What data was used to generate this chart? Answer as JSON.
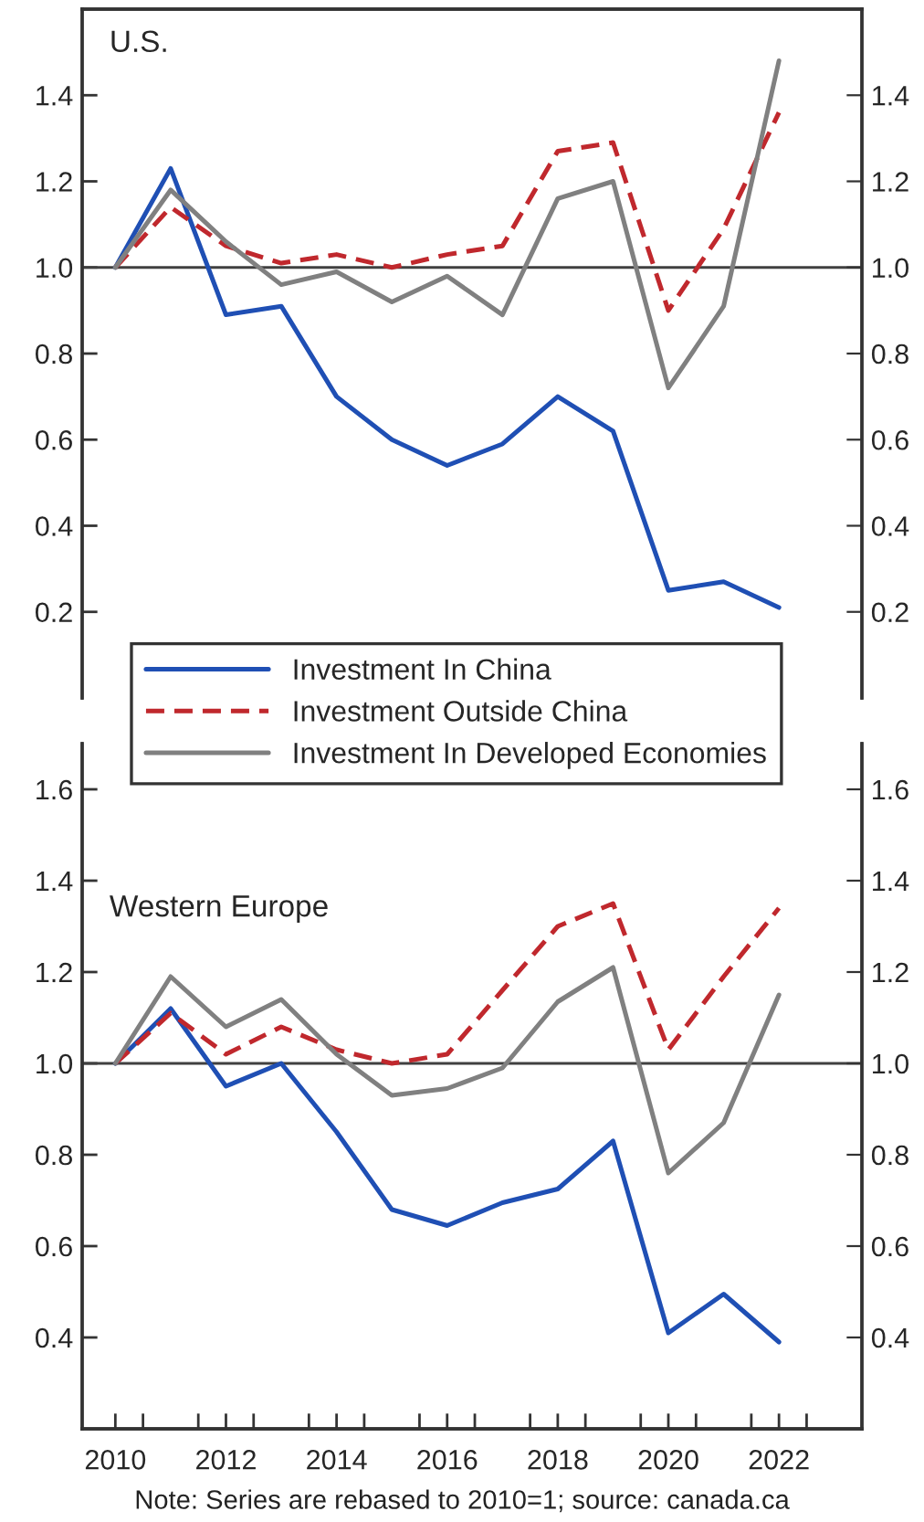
{
  "chart_data": [
    {
      "type": "line",
      "title": "U.S.",
      "x": [
        2010,
        2011,
        2012,
        2013,
        2014,
        2015,
        2016,
        2017,
        2018,
        2019,
        2020,
        2021,
        2022
      ],
      "series": [
        {
          "name": "Investment In China",
          "color": "#1f4fb4",
          "line_style": "solid",
          "values": [
            1.0,
            1.23,
            0.89,
            0.91,
            0.7,
            0.6,
            0.54,
            0.59,
            0.7,
            0.62,
            0.25,
            0.27,
            0.21
          ]
        },
        {
          "name": "Investment Outside China",
          "color": "#c0282d",
          "line_style": "dashed",
          "values": [
            1.0,
            1.14,
            1.05,
            1.01,
            1.03,
            1.0,
            1.03,
            1.05,
            1.27,
            1.29,
            0.9,
            1.09,
            1.36
          ]
        },
        {
          "name": "Investment In Developed Economies",
          "color": "#808080",
          "line_style": "solid",
          "values": [
            1.0,
            1.18,
            1.06,
            0.96,
            0.99,
            0.92,
            0.98,
            0.89,
            1.16,
            1.2,
            0.72,
            0.91,
            1.48
          ]
        }
      ],
      "xlim": [
        2009.4,
        2023.5
      ],
      "ylim": [
        0.0,
        1.6
      ],
      "yticks": [
        0.2,
        0.4,
        0.6,
        0.8,
        {
          "value": 1,
          "label": "1.0"
        },
        1.2,
        1.4
      ],
      "y2lim": [
        0.0,
        1.6
      ],
      "y2ticks": [
        0.2,
        0.4,
        0.6,
        0.8,
        {
          "value": 1,
          "label": "1.0"
        },
        1.2,
        1.4
      ],
      "tick_labels": "y",
      "ref_lines": [
        {
          "axis": "y",
          "value": 1.0,
          "color": "#404040"
        }
      ],
      "grid": false,
      "legend": "bottom",
      "marker": "none"
    },
    {
      "type": "line",
      "title": "Western Europe",
      "x": [
        2010,
        2011,
        2012,
        2013,
        2014,
        2015,
        2016,
        2017,
        2018,
        2019,
        2020,
        2021,
        2022
      ],
      "series": [
        {
          "color": "#1f4fb4",
          "line_style": "solid",
          "values": [
            1.0,
            1.12,
            0.95,
            1.0,
            0.85,
            0.68,
            0.645,
            0.695,
            0.725,
            0.83,
            0.41,
            0.495,
            0.39
          ]
        },
        {
          "color": "#c0282d",
          "line_style": "dashed",
          "values": [
            1.0,
            1.11,
            1.02,
            1.08,
            1.03,
            1.0,
            1.02,
            1.16,
            1.3,
            1.35,
            1.03,
            1.19,
            1.34
          ]
        },
        {
          "color": "#808080",
          "line_style": "solid",
          "values": [
            1.0,
            1.19,
            1.08,
            1.14,
            1.02,
            0.93,
            0.945,
            0.99,
            1.135,
            1.21,
            0.76,
            0.87,
            1.15
          ]
        }
      ],
      "xlim": [
        2009.4,
        2023.5
      ],
      "xticks": [
        2010,
        {
          "value": 2010.5,
          "label": null
        },
        {
          "value": 2011.5,
          "label": null
        },
        2012,
        {
          "value": 2012.5,
          "label": null
        },
        {
          "value": 2013.5,
          "label": null
        },
        2014,
        {
          "value": 2014.5,
          "label": null
        },
        {
          "value": 2015.5,
          "label": null
        },
        2016,
        {
          "value": 2016.5,
          "label": null
        },
        {
          "value": 2017.5,
          "label": null
        },
        2018,
        {
          "value": 2018.5,
          "label": null
        },
        {
          "value": 2019.5,
          "label": null
        },
        2020,
        {
          "value": 2020.5,
          "label": null
        },
        {
          "value": 2021.5,
          "label": null
        },
        2022,
        {
          "value": 2022.5,
          "label": null
        }
      ],
      "ylim": [
        0.2,
        1.7
      ],
      "yticks": [
        0.4,
        0.6,
        0.8,
        {
          "value": 1,
          "label": "1.0"
        },
        1.2,
        1.4,
        1.6
      ],
      "y2lim": [
        0.2,
        1.7
      ],
      "y2ticks": [
        0.4,
        0.6,
        0.8,
        {
          "value": 1,
          "label": "1.0"
        },
        1.2,
        1.4,
        1.6
      ],
      "ref_lines": [
        {
          "axis": "y",
          "value": 1.0,
          "color": "#404040"
        }
      ],
      "annotations": [
        "Note: Series are rebased to 2010=1; source: canada.ca"
      ],
      "grid": false,
      "legend": false,
      "marker": "none"
    }
  ]
}
